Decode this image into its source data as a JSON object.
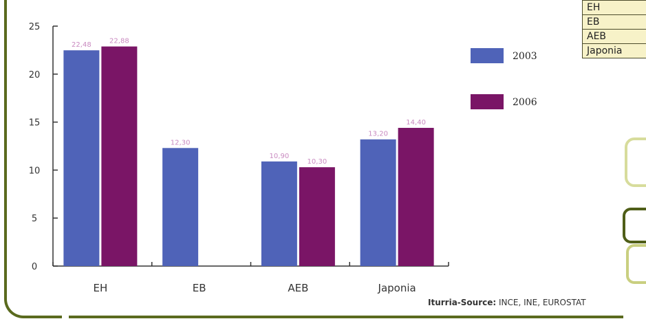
{
  "chart_data": {
    "type": "bar",
    "categories": [
      "EH",
      "EB",
      "AEB",
      "Japonia"
    ],
    "series": [
      {
        "name": "2003",
        "color": "#4f63b8",
        "values": [
          22.48,
          12.3,
          10.9,
          13.2
        ],
        "labels": [
          "22,48",
          "12,30",
          "10,90",
          "13,20"
        ]
      },
      {
        "name": "2006",
        "color": "#7a1566",
        "values": [
          22.88,
          null,
          10.3,
          14.4
        ],
        "labels": [
          "22,88",
          "",
          "10,30",
          "14,40"
        ]
      }
    ],
    "ylim": [
      0,
      25
    ],
    "yticks": [
      0,
      5,
      10,
      15,
      20,
      25
    ],
    "legend_position": "right",
    "grid": false
  },
  "side_table": {
    "rows": [
      "EH",
      "EB",
      "AEB",
      "Japonia"
    ]
  },
  "source": {
    "label": "Iturria-Source:",
    "text": " INCE, INE, EUROSTAT"
  },
  "colors": {
    "frame": "#5a6a1e",
    "table_fill": "#f7f2c8"
  }
}
